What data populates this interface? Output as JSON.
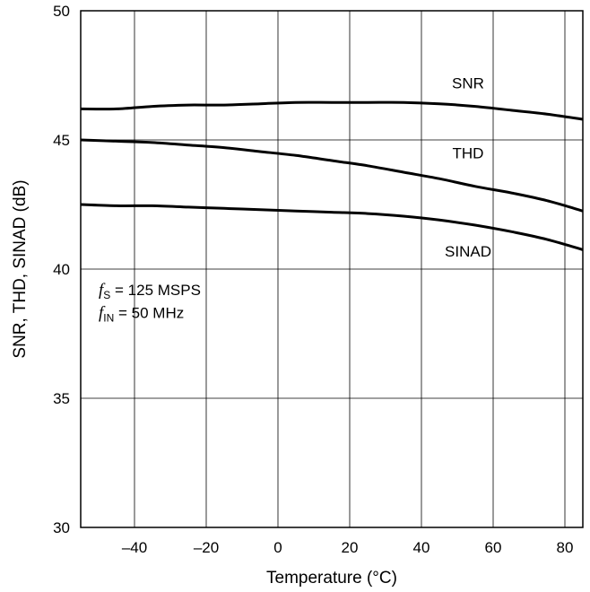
{
  "chart_data": {
    "type": "line",
    "title": "",
    "xlabel": "Temperature (°C)",
    "ylabel": "SNR, THD, SINAD (dB)",
    "xlim": [
      -55,
      85
    ],
    "ylim": [
      30,
      50
    ],
    "xticks": [
      -40,
      -20,
      0,
      20,
      40,
      60,
      80
    ],
    "xtick_labels": [
      "–40",
      "–20",
      "0",
      "20",
      "40",
      "60",
      "80"
    ],
    "yticks": [
      30,
      35,
      40,
      45,
      50
    ],
    "ytick_labels": [
      "30",
      "35",
      "40",
      "45",
      "50"
    ],
    "grid": true,
    "legend": "none",
    "series": [
      {
        "name": "SNR",
        "x": [
          -55,
          -45,
          -35,
          -25,
          -15,
          -5,
          5,
          15,
          25,
          35,
          45,
          55,
          65,
          75,
          85
        ],
        "y": [
          46.2,
          46.2,
          46.3,
          46.35,
          46.35,
          46.4,
          46.45,
          46.45,
          46.45,
          46.45,
          46.4,
          46.3,
          46.15,
          46.0,
          45.8
        ]
      },
      {
        "name": "THD",
        "x": [
          -55,
          -45,
          -35,
          -25,
          -15,
          -5,
          5,
          15,
          25,
          35,
          45,
          55,
          65,
          75,
          85
        ],
        "y": [
          45.0,
          44.95,
          44.9,
          44.8,
          44.7,
          44.55,
          44.4,
          44.2,
          44.0,
          43.75,
          43.5,
          43.2,
          42.95,
          42.65,
          42.25
        ]
      },
      {
        "name": "SINAD",
        "x": [
          -55,
          -45,
          -35,
          -25,
          -15,
          -5,
          5,
          15,
          25,
          35,
          45,
          55,
          65,
          75,
          85
        ],
        "y": [
          42.5,
          42.45,
          42.45,
          42.4,
          42.35,
          42.3,
          42.25,
          42.2,
          42.15,
          42.05,
          41.9,
          41.7,
          41.45,
          41.15,
          40.75
        ]
      }
    ],
    "series_labels": [
      {
        "text": "SNR",
        "x": 53,
        "y": 47.2
      },
      {
        "text": "THD",
        "x": 53,
        "y": 44.5
      },
      {
        "text": "SINAD",
        "x": 53,
        "y": 40.7
      }
    ],
    "annotations": {
      "line1": {
        "symbol": "f",
        "sub": "S",
        "text": " = 125 MSPS",
        "x": -50,
        "y": 39.0
      },
      "line2": {
        "symbol": "f",
        "sub": "IN",
        "text": " = 50 MHz",
        "x": -50,
        "y": 38.1
      }
    },
    "colors": {
      "line": "#000000",
      "grid": "#000000",
      "background": "#ffffff"
    }
  }
}
